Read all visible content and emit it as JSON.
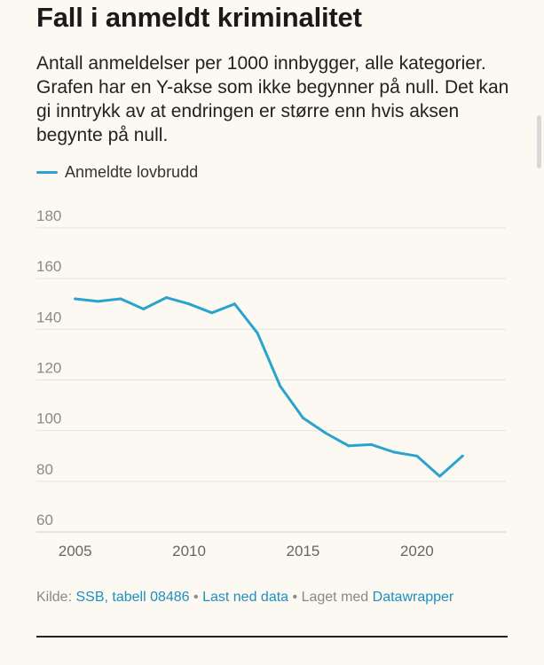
{
  "header": {
    "title": "Fall i anmeldt kriminalitet",
    "description": "Antall anmeldelser per 1000 innbygger, alle kategorier. Grafen har en Y-akse som ikke begynner på null. Det kan gi inntrykk av at endringen er større enn hvis aksen begynte på null."
  },
  "legend": {
    "series_label": "Anmeldte lovbrudd",
    "color": "#2aa3cf"
  },
  "chart_data": {
    "type": "line",
    "title": "Fall i anmeldt kriminalitet",
    "xlabel": "",
    "ylabel": "",
    "ylim": [
      60,
      180
    ],
    "xlim": [
      2003.3,
      2023.9
    ],
    "yticks": [
      180,
      160,
      140,
      120,
      100,
      80,
      60
    ],
    "xticks": [
      2005,
      2010,
      2015,
      2020
    ],
    "grid": true,
    "series": [
      {
        "name": "Anmeldte lovbrudd",
        "color": "#2aa3cf",
        "x": [
          2005,
          2006,
          2007,
          2008,
          2009,
          2010,
          2011,
          2012,
          2013,
          2014,
          2015,
          2016,
          2017,
          2018,
          2019,
          2020,
          2021,
          2022
        ],
        "y": [
          152,
          151,
          152,
          148,
          152.5,
          150,
          146.5,
          150,
          138.5,
          117.5,
          105,
          99,
          94,
          94.5,
          91.5,
          90,
          82,
          90
        ]
      }
    ]
  },
  "footer": {
    "source_prefix": "Kilde:",
    "source_link": "SSB, tabell 08486",
    "sep1": "•",
    "download_link": "Last ned data",
    "sep2": "•",
    "made_with": "Laget med",
    "tool_link": "Datawrapper"
  }
}
